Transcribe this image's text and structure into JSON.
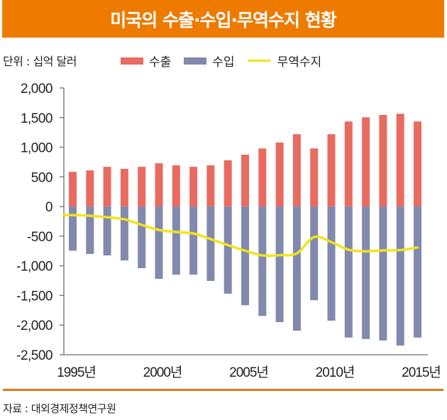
{
  "title": "미국의 수출·수입·무역수지 현황",
  "unit_label": "단위 : 십억 달러",
  "source": "자료 : 대외경제정책연구원",
  "colors": {
    "title_bg": "#ee7a00",
    "exports": "#e96b5f",
    "imports": "#8189ad",
    "balance": "#f2e31c",
    "axis": "#6d6e71",
    "footer_rule": "#e07a1a"
  },
  "legend": [
    {
      "label": "수출",
      "kind": "bar",
      "color": "#e96b5f"
    },
    {
      "label": "수입",
      "kind": "bar",
      "color": "#8189ad"
    },
    {
      "label": "무역수지",
      "kind": "line",
      "color": "#f2e31c"
    }
  ],
  "chart_data": {
    "type": "bar",
    "title": "미국의 수출·수입·무역수지 현황",
    "xlabel": "",
    "ylabel": "십억 달러",
    "ylim": [
      -2500,
      2000
    ],
    "yticks": [
      2000,
      1500,
      1000,
      500,
      0,
      -500,
      -1000,
      -1500,
      -2000,
      -2500
    ],
    "ytick_labels": [
      "2,000",
      "1,500",
      "1,000",
      "500",
      "0",
      "-500",
      "-1,000",
      "-1,500",
      "-2,000",
      "-2,500"
    ],
    "xtick_labels": [
      {
        "year": 1995,
        "label": "1995년"
      },
      {
        "year": 2000,
        "label": "2000년"
      },
      {
        "year": 2005,
        "label": "2005년"
      },
      {
        "year": 2010,
        "label": "2010년"
      },
      {
        "year": 2015,
        "label": "2015년"
      }
    ],
    "grid": false,
    "legend_position": "top",
    "categories": [
      1995,
      1996,
      1997,
      1998,
      1999,
      2000,
      2001,
      2002,
      2003,
      2004,
      2005,
      2006,
      2007,
      2008,
      2009,
      2010,
      2011,
      2012,
      2013,
      2014,
      2015
    ],
    "series": [
      {
        "name": "수출",
        "type": "bar",
        "values": [
          585,
          610,
          670,
          635,
          670,
          730,
          695,
          670,
          695,
          780,
          875,
          980,
          1080,
          1220,
          980,
          1220,
          1435,
          1505,
          1545,
          1565,
          1435
        ]
      },
      {
        "name": "수입",
        "type": "bar",
        "values": [
          -745,
          -800,
          -825,
          -910,
          -1040,
          -1220,
          -1150,
          -1150,
          -1255,
          -1470,
          -1665,
          -1845,
          -1950,
          -2095,
          -1580,
          -1925,
          -2210,
          -2235,
          -2260,
          -2345,
          -2210
        ]
      },
      {
        "name": "무역수지",
        "type": "line",
        "values": [
          -145,
          -155,
          -180,
          -215,
          -310,
          -395,
          -430,
          -455,
          -550,
          -650,
          -745,
          -825,
          -820,
          -790,
          -515,
          -600,
          -730,
          -755,
          -740,
          -735,
          -690
        ]
      }
    ]
  }
}
